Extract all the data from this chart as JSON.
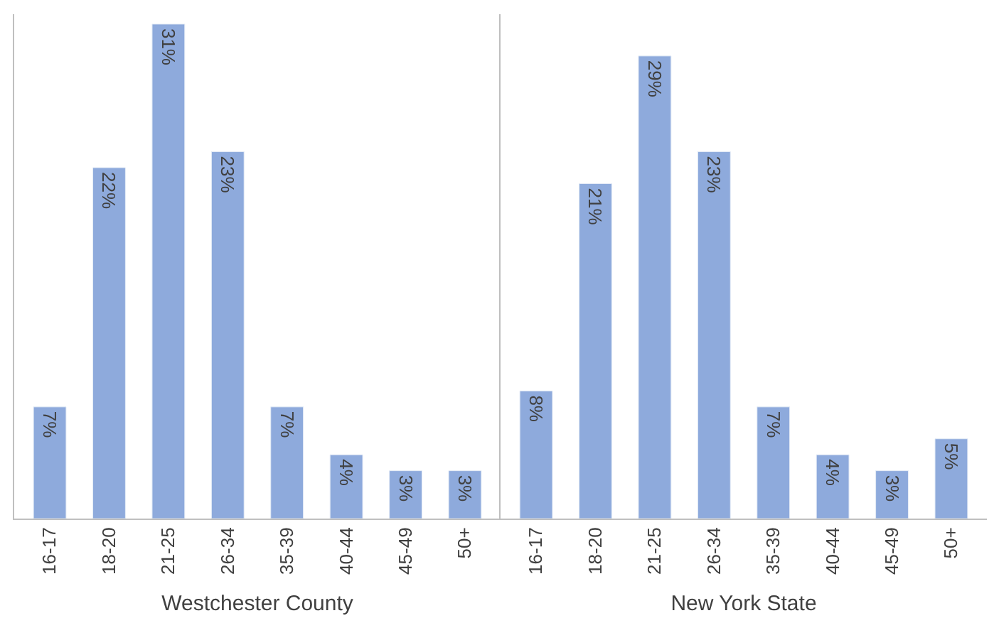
{
  "chart_data": [
    {
      "type": "bar",
      "xlabel": "Westchester County",
      "categories": [
        "16-17",
        "18-20",
        "21-25",
        "26-34",
        "35-39",
        "40-44",
        "45-49",
        "50+"
      ],
      "values": [
        7,
        22,
        31,
        23,
        7,
        4,
        3,
        3
      ],
      "value_labels": [
        "7%",
        "22%",
        "31%",
        "23%",
        "7%",
        "4%",
        "3%",
        "3%"
      ],
      "color": "#8eaadc",
      "tick_labels": "x"
    },
    {
      "type": "bar",
      "xlabel": "New York State",
      "categories": [
        "16-17",
        "18-20",
        "21-25",
        "26-34",
        "35-39",
        "40-44",
        "45-49",
        "50+"
      ],
      "values": [
        8,
        21,
        29,
        23,
        7,
        4,
        3,
        5
      ],
      "value_labels": [
        "8%",
        "21%",
        "29%",
        "23%",
        "7%",
        "4%",
        "3%",
        "5%"
      ],
      "color": "#8eaadc",
      "tick_labels": "x"
    }
  ]
}
